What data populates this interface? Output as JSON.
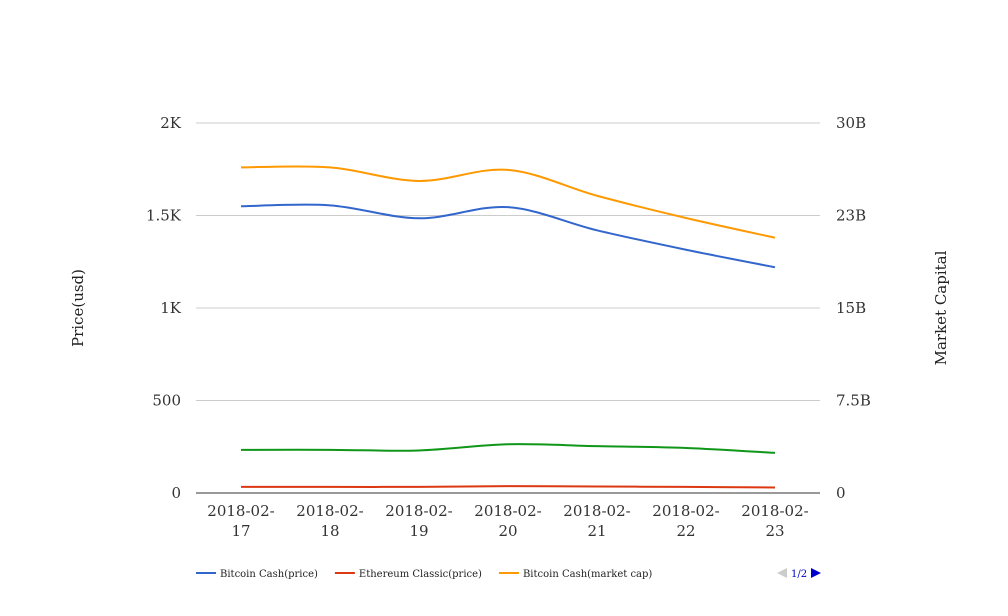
{
  "chart_data": {
    "type": "line",
    "categories": [
      [
        "2018-02-",
        "17"
      ],
      [
        "2018-02-",
        "18"
      ],
      [
        "2018-02-",
        "19"
      ],
      [
        "2018-02-",
        "20"
      ],
      [
        "2018-02-",
        "21"
      ],
      [
        "2018-02-",
        "22"
      ],
      [
        "2018-02-",
        "23"
      ]
    ],
    "ylabel": "Price(usd)",
    "y2label": "Market Capital",
    "ylim": [
      0,
      2000
    ],
    "y2lim": [
      0,
      30000000000
    ],
    "y_ticks": [
      {
        "v": 0,
        "label": "0"
      },
      {
        "v": 500,
        "label": "500"
      },
      {
        "v": 1000,
        "label": "1K"
      },
      {
        "v": 1500,
        "label": "1.5K"
      },
      {
        "v": 2000,
        "label": "2K"
      }
    ],
    "y2_ticks": [
      {
        "v": 0,
        "label": "0"
      },
      {
        "v": 7500000000,
        "label": "7.5B"
      },
      {
        "v": 15000000000,
        "label": "15B"
      },
      {
        "v": 22500000000,
        "label": "23B"
      },
      {
        "v": 30000000000,
        "label": "30B"
      }
    ],
    "grid": true,
    "legend_position": "bottom-left",
    "series": [
      {
        "name": "Bitcoin Cash(price)",
        "axis": "left",
        "color": "#3366cc",
        "in_legend": true,
        "values": [
          1550,
          1555,
          1485,
          1545,
          1420,
          1315,
          1220
        ]
      },
      {
        "name": "Ethereum Classic(price)",
        "axis": "left",
        "color": "#dc3912",
        "in_legend": true,
        "values": [
          33,
          33,
          33,
          37,
          35,
          33,
          30
        ]
      },
      {
        "name": "Bitcoin Cash(market cap)",
        "axis": "right",
        "color": "#ff9900",
        "in_legend": true,
        "values": [
          26400000000,
          26400000000,
          25300000000,
          26200000000,
          24100000000,
          22300000000,
          20700000000
        ]
      },
      {
        "name": "",
        "axis": "right",
        "color": "#109618",
        "in_legend": false,
        "values": [
          3500000000,
          3500000000,
          3450000000,
          3950000000,
          3800000000,
          3650000000,
          3250000000
        ]
      }
    ]
  },
  "legend_pager": {
    "label": "1/2"
  }
}
